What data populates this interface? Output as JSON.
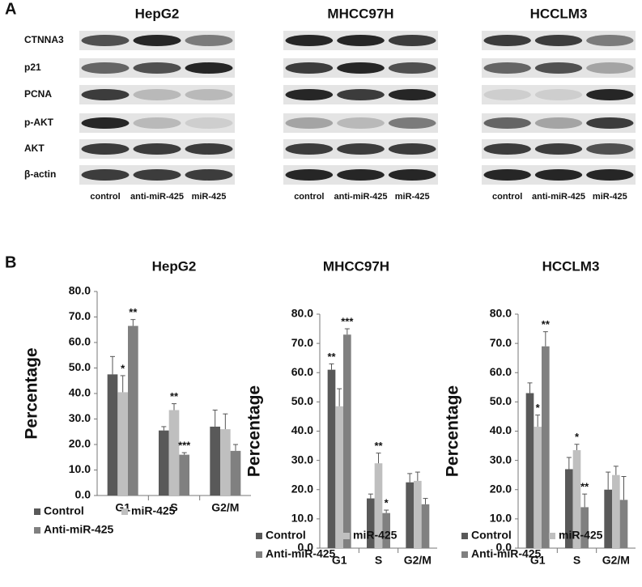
{
  "panel_a": {
    "label": "A",
    "titles": [
      "HepG2",
      "MHCC97H",
      "HCCLM3"
    ],
    "rows": [
      "CTNNA3",
      "p21",
      "PCNA",
      "p-AKT",
      "AKT",
      "β-actin"
    ],
    "lanes": [
      "control",
      "anti-miR-425",
      "miR-425"
    ]
  },
  "panel_b_label": "B",
  "chart_data": [
    {
      "type": "bar",
      "title": "HepG2",
      "y_label": "Percentage",
      "categories": [
        "G1",
        "S",
        "G2/M"
      ],
      "ylim": [
        0,
        80
      ],
      "yticks": [
        {
          "value": 0,
          "label": "0.0"
        },
        {
          "value": 10,
          "label": "10.0"
        },
        {
          "value": 20,
          "label": "20.0"
        },
        {
          "value": 30,
          "label": "30.0"
        },
        {
          "value": 40,
          "label": "40.0"
        },
        {
          "value": 50,
          "label": "50.0"
        },
        {
          "value": 60,
          "label": "60.0"
        },
        {
          "value": 70,
          "label": "70.0"
        },
        {
          "value": 80,
          "label": "80.0"
        }
      ],
      "series": [
        {
          "name": "Control",
          "color": "#595959",
          "values": [
            47.5,
            25.5,
            27
          ],
          "errors": [
            7,
            1.5,
            6.5
          ],
          "significance": [
            null,
            null,
            null
          ]
        },
        {
          "name": "miR-425",
          "color": "#bfbfbf",
          "values": [
            40.5,
            33.5,
            26
          ],
          "errors": [
            6.5,
            2.5,
            6
          ],
          "significance": [
            "*",
            "**",
            null
          ]
        },
        {
          "name": "Anti-miR-425",
          "color": "#808080",
          "values": [
            66.5,
            16,
            17.5
          ],
          "errors": [
            2.5,
            0.8,
            2.5
          ],
          "significance": [
            "**",
            "***",
            null
          ]
        }
      ]
    },
    {
      "type": "bar",
      "title": "MHCC97H",
      "y_label": "Percentage",
      "categories": [
        "G1",
        "S",
        "G2/M"
      ],
      "ylim": [
        0,
        80
      ],
      "yticks": [
        {
          "value": 0,
          "label": "0.0"
        },
        {
          "value": 10,
          "label": "10.0"
        },
        {
          "value": 20,
          "label": "20.0"
        },
        {
          "value": 30,
          "label": "30.0"
        },
        {
          "value": 40,
          "label": "40.0"
        },
        {
          "value": 50,
          "label": "50.0"
        },
        {
          "value": 60,
          "label": "60.0"
        },
        {
          "value": 70,
          "label": "70.0"
        },
        {
          "value": 80,
          "label": "80.0"
        }
      ],
      "series": [
        {
          "name": "Control",
          "color": "#595959",
          "values": [
            61,
            17,
            22.5
          ],
          "errors": [
            2,
            1.5,
            3
          ],
          "significance": [
            "**",
            null,
            null
          ]
        },
        {
          "name": "miR-425",
          "color": "#bfbfbf",
          "values": [
            48.5,
            29,
            23
          ],
          "errors": [
            6,
            3.5,
            3
          ],
          "significance": [
            null,
            "**",
            null
          ]
        },
        {
          "name": "Anti-miR-425",
          "color": "#808080",
          "values": [
            73,
            12,
            15
          ],
          "errors": [
            2,
            1,
            2
          ],
          "significance": [
            "***",
            "*",
            null
          ]
        }
      ]
    },
    {
      "type": "bar",
      "title": "HCCLM3",
      "y_label": "Percentage",
      "categories": [
        "G1",
        "S",
        "G2/M"
      ],
      "ylim": [
        0,
        80
      ],
      "yticks": [
        {
          "value": 0,
          "label": "0.0"
        },
        {
          "value": 10,
          "label": "10.0"
        },
        {
          "value": 20,
          "label": "20.0"
        },
        {
          "value": 30,
          "label": "30.0"
        },
        {
          "value": 40,
          "label": "40.0"
        },
        {
          "value": 50,
          "label": "50.0"
        },
        {
          "value": 60,
          "label": "60.0"
        },
        {
          "value": 70,
          "label": "70.0"
        },
        {
          "value": 80,
          "label": "80.0"
        }
      ],
      "series": [
        {
          "name": "Control",
          "color": "#595959",
          "values": [
            53,
            27,
            20
          ],
          "errors": [
            3.5,
            4,
            6
          ],
          "significance": [
            null,
            null,
            null
          ]
        },
        {
          "name": "miR-425",
          "color": "#bfbfbf",
          "values": [
            41.5,
            33.5,
            25
          ],
          "errors": [
            4,
            2,
            3
          ],
          "significance": [
            "*",
            "*",
            null
          ]
        },
        {
          "name": "Anti-miR-425",
          "color": "#808080",
          "values": [
            69,
            14,
            16.5
          ],
          "errors": [
            5,
            4.5,
            8
          ],
          "significance": [
            "**",
            "**",
            null
          ]
        }
      ]
    }
  ]
}
